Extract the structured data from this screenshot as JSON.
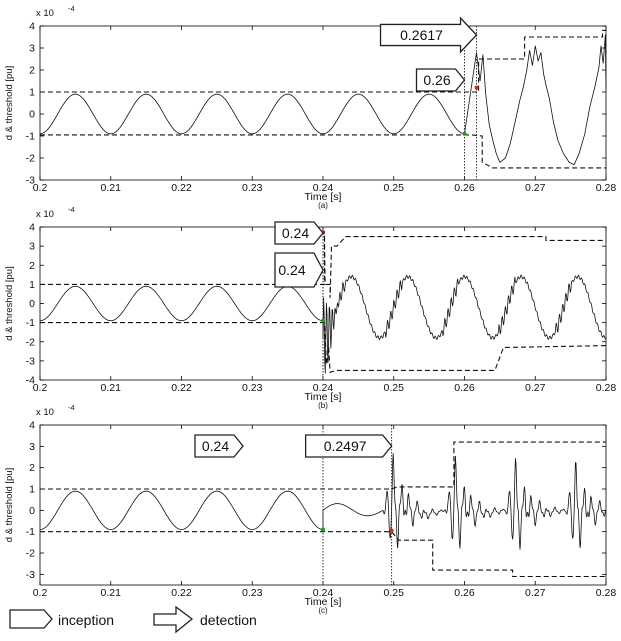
{
  "chart_data": [
    {
      "type": "line",
      "panel_label": "(a)",
      "xlabel": "Time [s]",
      "ylabel": "d & threshold [pu]",
      "y_multiplier": "x 10",
      "y_exponent": "-4",
      "xlim": [
        0.2,
        0.28
      ],
      "ylim": [
        -3,
        4
      ],
      "x_ticks": [
        "0.2",
        "0.21",
        "0.22",
        "0.23",
        "0.24",
        "0.25",
        "0.26",
        "0.27",
        "0.28"
      ],
      "y_ticks": [
        "-3",
        "-2",
        "-1",
        "0",
        "1",
        "2",
        "3",
        "4"
      ],
      "signal": {
        "pre_fault": {
          "amplitude": 0.9,
          "period": 0.01
        },
        "post_fault": [
          [
            0.2617,
            2.8
          ],
          [
            0.2622,
            1.5
          ],
          [
            0.2626,
            2.7
          ],
          [
            0.263,
            0.9
          ],
          [
            0.2635,
            -0.5
          ],
          [
            0.264,
            -1.2
          ],
          [
            0.2645,
            -1.8
          ],
          [
            0.265,
            -2.2
          ],
          [
            0.2658,
            -2.0
          ],
          [
            0.2665,
            -1.3
          ],
          [
            0.2672,
            -0.3
          ],
          [
            0.2678,
            0.6
          ],
          [
            0.2683,
            1.2
          ],
          [
            0.2688,
            2.0
          ],
          [
            0.2692,
            2.9
          ],
          [
            0.2696,
            2.2
          ],
          [
            0.27,
            3.1
          ],
          [
            0.2704,
            2.4
          ],
          [
            0.2708,
            2.8
          ],
          [
            0.2712,
            1.8
          ],
          [
            0.2716,
            1.2
          ],
          [
            0.272,
            0.7
          ],
          [
            0.2726,
            -0.4
          ],
          [
            0.2732,
            -1.2
          ],
          [
            0.274,
            -1.8
          ],
          [
            0.2748,
            -2.2
          ],
          [
            0.2755,
            -2.3
          ],
          [
            0.2762,
            -1.8
          ],
          [
            0.277,
            -0.9
          ],
          [
            0.2777,
            0.3
          ],
          [
            0.2784,
            1.2
          ],
          [
            0.279,
            2.1
          ],
          [
            0.2793,
            3.1
          ],
          [
            0.2796,
            2.3
          ],
          [
            0.2799,
            3.6
          ],
          [
            0.28,
            1.1
          ]
        ]
      },
      "threshold_upper": [
        [
          0.2,
          1.0
        ],
        [
          0.262,
          1.0
        ],
        [
          0.262,
          2.5
        ],
        [
          0.2685,
          2.5
        ],
        [
          0.2685,
          3.5
        ],
        [
          0.2795,
          3.5
        ],
        [
          0.2795,
          3.8
        ],
        [
          0.28,
          3.8
        ]
      ],
      "threshold_lower": [
        [
          0.2,
          -0.95
        ],
        [
          0.261,
          -0.95
        ],
        [
          0.2625,
          -1.0
        ],
        [
          0.2625,
          -2.2
        ],
        [
          0.264,
          -2.45
        ],
        [
          0.28,
          -2.45
        ]
      ],
      "markers": [
        {
          "x": 0.26,
          "color": "#16a316"
        },
        {
          "x": 0.2617,
          "color": "#e02020"
        }
      ],
      "arrows": [
        {
          "label": "0.26",
          "kind": "inception"
        },
        {
          "label": "0.2617",
          "kind": "detection"
        }
      ]
    },
    {
      "type": "line",
      "panel_label": "(b)",
      "xlabel": "Time [s]",
      "ylabel": "d & threshold [pu]",
      "y_multiplier": "x 10",
      "y_exponent": "-4",
      "xlim": [
        0.2,
        0.28
      ],
      "ylim": [
        -4,
        4
      ],
      "x_ticks": [
        "0.2",
        "0.21",
        "0.22",
        "0.23",
        "0.24",
        "0.25",
        "0.26",
        "0.27",
        "0.28"
      ],
      "y_ticks": [
        "-4",
        "-3",
        "-2",
        "-1",
        "0",
        "1",
        "2",
        "3",
        "4"
      ],
      "signal": {
        "pre_fault": {
          "amplitude": 0.9,
          "period": 0.01
        },
        "post_fault_mean": -0.2,
        "post_fault_amplitude": 1.6,
        "post_fault_period": 0.008
      },
      "threshold_upper": [
        [
          0.2,
          1.0
        ],
        [
          0.2402,
          1.0
        ],
        [
          0.2402,
          3.8
        ],
        [
          0.2403,
          1.0
        ],
        [
          0.241,
          1.0
        ],
        [
          0.241,
          0.3
        ],
        [
          0.2412,
          3.0
        ],
        [
          0.242,
          3.0
        ],
        [
          0.2432,
          3.5
        ],
        [
          0.2715,
          3.5
        ],
        [
          0.2715,
          3.3
        ],
        [
          0.28,
          3.3
        ]
      ],
      "threshold_lower": [
        [
          0.2,
          -1.0
        ],
        [
          0.2402,
          -1.0
        ],
        [
          0.2405,
          -3.2
        ],
        [
          0.2408,
          -2.3
        ],
        [
          0.241,
          -3.6
        ],
        [
          0.2418,
          -3.5
        ],
        [
          0.2643,
          -3.5
        ],
        [
          0.2655,
          -2.3
        ],
        [
          0.28,
          -2.2
        ]
      ],
      "markers": [
        {
          "x": 0.24,
          "color": "#16a316"
        },
        {
          "x": 0.24,
          "color": "#e02020"
        }
      ],
      "arrows": [
        {
          "label": "0.24",
          "kind": "inception"
        },
        {
          "label": "0.24",
          "kind": "detection"
        }
      ]
    },
    {
      "type": "line",
      "panel_label": "(c)",
      "xlabel": "Time [s]",
      "ylabel": "d & threshold [pu]",
      "y_multiplier": "x 10",
      "y_exponent": "-4",
      "xlim": [
        0.2,
        0.28
      ],
      "ylim": [
        -3.5,
        4
      ],
      "x_ticks": [
        "0.2",
        "0.21",
        "0.22",
        "0.23",
        "0.24",
        "0.25",
        "0.26",
        "0.27",
        "0.28"
      ],
      "y_ticks": [
        "-3",
        "-2",
        "-1",
        "0",
        "1",
        "2",
        "3",
        "4"
      ],
      "signal": {
        "pre_fault": {
          "amplitude": 0.9,
          "period": 0.01
        },
        "post_fault_bursts": [
          {
            "x": 0.2497,
            "peak": 3.0
          },
          {
            "x": 0.2585,
            "peak": 2.9
          },
          {
            "x": 0.267,
            "peak": 2.9
          },
          {
            "x": 0.2755,
            "peak": 2.8
          }
        ]
      },
      "threshold_upper": [
        [
          0.2,
          1.0
        ],
        [
          0.2497,
          1.0
        ],
        [
          0.2505,
          1.1
        ],
        [
          0.2555,
          1.1
        ],
        [
          0.2585,
          1.1
        ],
        [
          0.2585,
          3.2
        ],
        [
          0.28,
          3.2
        ]
      ],
      "threshold_lower": [
        [
          0.2,
          -1.0
        ],
        [
          0.2497,
          -1.0
        ],
        [
          0.2507,
          -1.4
        ],
        [
          0.2555,
          -1.4
        ],
        [
          0.2555,
          -2.8
        ],
        [
          0.2668,
          -2.8
        ],
        [
          0.2668,
          -3.1
        ],
        [
          0.28,
          -3.1
        ]
      ],
      "markers": [
        {
          "x": 0.24,
          "color": "#16a316"
        },
        {
          "x": 0.2497,
          "color": "#e02020"
        }
      ],
      "arrows": [
        {
          "label": "0.24",
          "kind": "inception"
        },
        {
          "label": "0.2497",
          "kind": "detection"
        }
      ]
    }
  ],
  "legend": {
    "inception_label": "inception",
    "detection_label": "detection"
  }
}
